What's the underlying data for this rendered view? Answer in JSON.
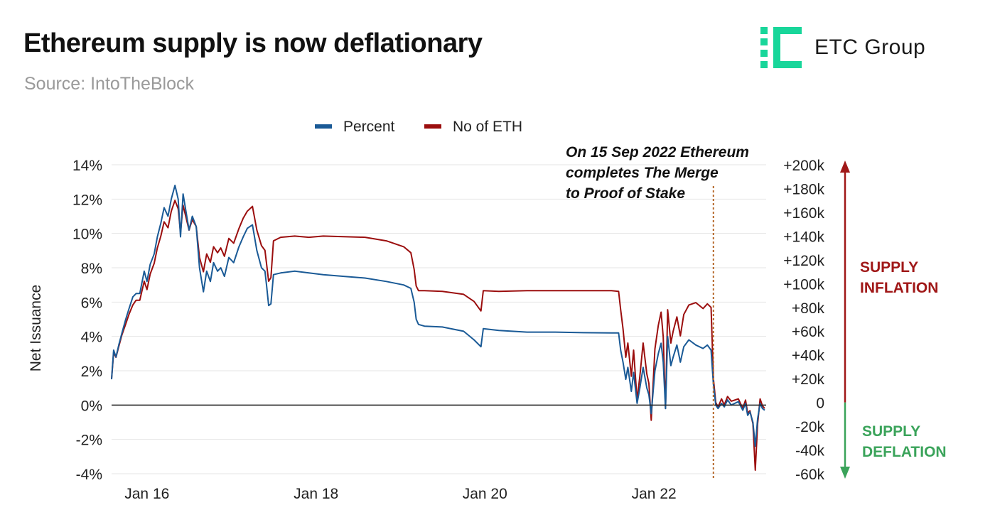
{
  "header": {
    "title": "Ethereum supply is now deflationary",
    "subtitle": "Source: IntoTheBlock",
    "logo_text": "ETC Group"
  },
  "colors": {
    "percent": "#1a5a96",
    "eth": "#9b0e0e",
    "inflation": "#a01818",
    "deflation": "#3aa35a",
    "logo": "#18d69a",
    "merge_line": "#b5682a"
  },
  "chart_data": {
    "type": "line",
    "title": "Ethereum supply is now deflationary",
    "subtitle": "Source: IntoTheBlock",
    "ylabel": "Net Issuance",
    "xlabel": "",
    "legend": {
      "position": "top",
      "items": [
        "Percent",
        "No of ETH"
      ]
    },
    "x_ticks": [
      {
        "label": "Jan 16",
        "date": "2016-01-01"
      },
      {
        "label": "Jan 18",
        "date": "2018-01-01"
      },
      {
        "label": "Jan 20",
        "date": "2020-01-01"
      },
      {
        "label": "Jan 22",
        "date": "2022-01-01"
      }
    ],
    "xlim": [
      "2015-08-01",
      "2023-05-01"
    ],
    "y_left": {
      "ticks": [
        "14%",
        "12%",
        "10%",
        "8%",
        "6%",
        "4%",
        "2%",
        "0%",
        "-2%",
        "-4%"
      ],
      "values": [
        14,
        12,
        10,
        8,
        6,
        4,
        2,
        0,
        -2,
        -4
      ],
      "ylim": [
        -4,
        14
      ]
    },
    "y_right": {
      "ticks": [
        "+200k",
        "+180k",
        "+160k",
        "+140k",
        "+120k",
        "+100k",
        "+80k",
        "+60k",
        "+40k",
        "+20k",
        "0",
        "-20k",
        "-40k",
        "-60k"
      ],
      "values": [
        200000,
        180000,
        160000,
        140000,
        120000,
        100000,
        80000,
        60000,
        40000,
        20000,
        0,
        -20000,
        -40000,
        -60000
      ],
      "ylim": [
        -60000,
        200000
      ]
    },
    "grid": true,
    "annotation": {
      "date": "2022-09-15",
      "lines": [
        "On 15 Sep 2022 Ethereum",
        "completes The Merge",
        "to Proof of Stake"
      ]
    },
    "side_labels": {
      "inflation": [
        "SUPPLY",
        "INFLATION"
      ],
      "deflation": [
        "SUPPLY",
        "DEFLATION"
      ]
    },
    "series": [
      {
        "name": "Percent",
        "axis": "left",
        "unit": "%",
        "points": [
          [
            "2015-08-01",
            1.5
          ],
          [
            "2015-08-10",
            3.2
          ],
          [
            "2015-08-20",
            2.8
          ],
          [
            "2015-09-01",
            3.5
          ],
          [
            "2015-09-15",
            4.2
          ],
          [
            "2015-10-01",
            5.0
          ],
          [
            "2015-10-15",
            5.6
          ],
          [
            "2015-11-01",
            6.3
          ],
          [
            "2015-11-15",
            6.5
          ],
          [
            "2015-12-01",
            6.5
          ],
          [
            "2015-12-20",
            7.8
          ],
          [
            "2016-01-01",
            7.2
          ],
          [
            "2016-01-15",
            8.2
          ],
          [
            "2016-02-01",
            8.8
          ],
          [
            "2016-02-15",
            9.8
          ],
          [
            "2016-03-01",
            10.6
          ],
          [
            "2016-03-15",
            11.5
          ],
          [
            "2016-04-01",
            11.0
          ],
          [
            "2016-04-15",
            12.0
          ],
          [
            "2016-05-01",
            12.8
          ],
          [
            "2016-05-15",
            12.0
          ],
          [
            "2016-05-25",
            9.8
          ],
          [
            "2016-06-05",
            12.3
          ],
          [
            "2016-06-15",
            11.5
          ],
          [
            "2016-07-01",
            10.2
          ],
          [
            "2016-07-15",
            11.0
          ],
          [
            "2016-08-01",
            10.4
          ],
          [
            "2016-08-15",
            8.0
          ],
          [
            "2016-09-01",
            6.6
          ],
          [
            "2016-09-15",
            7.8
          ],
          [
            "2016-10-01",
            7.2
          ],
          [
            "2016-10-15",
            8.3
          ],
          [
            "2016-11-01",
            7.8
          ],
          [
            "2016-11-15",
            8.0
          ],
          [
            "2016-12-01",
            7.5
          ],
          [
            "2016-12-20",
            8.6
          ],
          [
            "2017-01-10",
            8.3
          ],
          [
            "2017-02-01",
            9.2
          ],
          [
            "2017-02-20",
            9.8
          ],
          [
            "2017-03-10",
            10.3
          ],
          [
            "2017-04-01",
            10.5
          ],
          [
            "2017-04-20",
            9.0
          ],
          [
            "2017-05-10",
            8.0
          ],
          [
            "2017-05-25",
            7.8
          ],
          [
            "2017-06-01",
            7.0
          ],
          [
            "2017-06-10",
            5.8
          ],
          [
            "2017-06-20",
            5.9
          ],
          [
            "2017-07-01",
            7.6
          ],
          [
            "2017-08-01",
            7.7
          ],
          [
            "2017-10-01",
            7.8
          ],
          [
            "2017-12-01",
            7.7
          ],
          [
            "2018-02-01",
            7.6
          ],
          [
            "2018-05-01",
            7.5
          ],
          [
            "2018-08-01",
            7.4
          ],
          [
            "2018-11-01",
            7.2
          ],
          [
            "2019-01-15",
            7.0
          ],
          [
            "2019-02-15",
            6.8
          ],
          [
            "2019-03-01",
            6.0
          ],
          [
            "2019-03-10",
            5.0
          ],
          [
            "2019-03-20",
            4.7
          ],
          [
            "2019-04-15",
            4.6
          ],
          [
            "2019-07-01",
            4.55
          ],
          [
            "2019-10-01",
            4.3
          ],
          [
            "2019-11-15",
            3.8
          ],
          [
            "2019-12-15",
            3.4
          ],
          [
            "2019-12-25",
            4.45
          ],
          [
            "2020-03-01",
            4.35
          ],
          [
            "2020-07-01",
            4.25
          ],
          [
            "2020-11-01",
            4.25
          ],
          [
            "2021-03-01",
            4.22
          ],
          [
            "2021-07-01",
            4.2
          ],
          [
            "2021-08-01",
            4.2
          ],
          [
            "2021-08-10",
            3.2
          ],
          [
            "2021-08-20",
            2.5
          ],
          [
            "2021-09-01",
            1.5
          ],
          [
            "2021-09-10",
            2.2
          ],
          [
            "2021-09-25",
            0.8
          ],
          [
            "2021-10-05",
            1.9
          ],
          [
            "2021-10-20",
            0.1
          ],
          [
            "2021-11-01",
            1.0
          ],
          [
            "2021-11-15",
            2.2
          ],
          [
            "2021-12-01",
            1.0
          ],
          [
            "2021-12-10",
            0.6
          ],
          [
            "2021-12-20",
            -0.5
          ],
          [
            "2022-01-05",
            2.0
          ],
          [
            "2022-01-20",
            3.0
          ],
          [
            "2022-02-01",
            3.6
          ],
          [
            "2022-02-10",
            2.5
          ],
          [
            "2022-02-20",
            -0.2
          ],
          [
            "2022-03-01",
            4.0
          ],
          [
            "2022-03-15",
            2.3
          ],
          [
            "2022-03-25",
            2.8
          ],
          [
            "2022-04-10",
            3.5
          ],
          [
            "2022-04-25",
            2.5
          ],
          [
            "2022-05-10",
            3.4
          ],
          [
            "2022-06-01",
            3.8
          ],
          [
            "2022-07-01",
            3.5
          ],
          [
            "2022-08-01",
            3.3
          ],
          [
            "2022-08-20",
            3.5
          ],
          [
            "2022-09-05",
            3.2
          ],
          [
            "2022-09-15",
            1.2
          ],
          [
            "2022-09-25",
            0.0
          ],
          [
            "2022-10-05",
            -0.2
          ],
          [
            "2022-10-20",
            0.1
          ],
          [
            "2022-11-01",
            -0.1
          ],
          [
            "2022-11-15",
            0.3
          ],
          [
            "2022-12-01",
            0.0
          ],
          [
            "2023-01-01",
            0.2
          ],
          [
            "2023-01-20",
            -0.3
          ],
          [
            "2023-02-01",
            0.1
          ],
          [
            "2023-02-10",
            -0.6
          ],
          [
            "2023-02-20",
            -0.4
          ],
          [
            "2023-03-05",
            -1.0
          ],
          [
            "2023-03-15",
            -2.4
          ],
          [
            "2023-03-25",
            -0.8
          ],
          [
            "2023-04-05",
            0.1
          ],
          [
            "2023-04-15",
            -0.2
          ],
          [
            "2023-04-25",
            -0.3
          ]
        ]
      },
      {
        "name": "No of ETH",
        "axis": "right",
        "unit": "ETH",
        "points": [
          [
            "2015-08-01",
            20000
          ],
          [
            "2015-08-10",
            42000
          ],
          [
            "2015-08-20",
            38000
          ],
          [
            "2015-09-01",
            47000
          ],
          [
            "2015-09-15",
            57000
          ],
          [
            "2015-10-01",
            66000
          ],
          [
            "2015-10-15",
            74000
          ],
          [
            "2015-11-01",
            82000
          ],
          [
            "2015-11-15",
            86000
          ],
          [
            "2015-12-01",
            86000
          ],
          [
            "2015-12-20",
            102000
          ],
          [
            "2016-01-01",
            95000
          ],
          [
            "2016-01-15",
            108000
          ],
          [
            "2016-02-01",
            117000
          ],
          [
            "2016-02-15",
            130000
          ],
          [
            "2016-03-01",
            140000
          ],
          [
            "2016-03-15",
            152000
          ],
          [
            "2016-04-01",
            147000
          ],
          [
            "2016-04-15",
            161000
          ],
          [
            "2016-05-01",
            170000
          ],
          [
            "2016-05-15",
            163000
          ],
          [
            "2016-05-25",
            143000
          ],
          [
            "2016-06-05",
            166000
          ],
          [
            "2016-06-15",
            158000
          ],
          [
            "2016-07-01",
            145000
          ],
          [
            "2016-07-15",
            154000
          ],
          [
            "2016-08-01",
            148000
          ],
          [
            "2016-08-15",
            122000
          ],
          [
            "2016-09-01",
            110000
          ],
          [
            "2016-09-15",
            125000
          ],
          [
            "2016-10-01",
            118000
          ],
          [
            "2016-10-15",
            131000
          ],
          [
            "2016-11-01",
            126000
          ],
          [
            "2016-11-15",
            130000
          ],
          [
            "2016-12-01",
            123000
          ],
          [
            "2016-12-20",
            138000
          ],
          [
            "2017-01-10",
            134000
          ],
          [
            "2017-02-01",
            146000
          ],
          [
            "2017-02-20",
            155000
          ],
          [
            "2017-03-10",
            161000
          ],
          [
            "2017-04-01",
            165000
          ],
          [
            "2017-04-20",
            145000
          ],
          [
            "2017-05-10",
            132000
          ],
          [
            "2017-05-25",
            128000
          ],
          [
            "2017-06-01",
            117000
          ],
          [
            "2017-06-10",
            102000
          ],
          [
            "2017-06-20",
            105000
          ],
          [
            "2017-07-01",
            136000
          ],
          [
            "2017-08-01",
            139000
          ],
          [
            "2017-10-01",
            140000
          ],
          [
            "2017-12-01",
            139000
          ],
          [
            "2018-02-01",
            140000
          ],
          [
            "2018-05-01",
            139500
          ],
          [
            "2018-08-01",
            139000
          ],
          [
            "2018-11-01",
            136000
          ],
          [
            "2019-01-15",
            131000
          ],
          [
            "2019-02-15",
            126000
          ],
          [
            "2019-03-01",
            112000
          ],
          [
            "2019-03-10",
            98000
          ],
          [
            "2019-03-20",
            94000
          ],
          [
            "2019-04-15",
            94000
          ],
          [
            "2019-07-01",
            93500
          ],
          [
            "2019-10-01",
            91000
          ],
          [
            "2019-11-15",
            85000
          ],
          [
            "2019-12-15",
            77000
          ],
          [
            "2019-12-25",
            94000
          ],
          [
            "2020-03-01",
            93500
          ],
          [
            "2020-07-01",
            94000
          ],
          [
            "2020-11-01",
            94000
          ],
          [
            "2021-03-01",
            94000
          ],
          [
            "2021-07-01",
            94000
          ],
          [
            "2021-08-01",
            93500
          ],
          [
            "2021-08-10",
            78000
          ],
          [
            "2021-08-20",
            62000
          ],
          [
            "2021-09-01",
            38000
          ],
          [
            "2021-09-10",
            50000
          ],
          [
            "2021-09-25",
            22000
          ],
          [
            "2021-10-05",
            44000
          ],
          [
            "2021-10-20",
            2000
          ],
          [
            "2021-11-01",
            22000
          ],
          [
            "2021-11-15",
            50000
          ],
          [
            "2021-12-01",
            24000
          ],
          [
            "2021-12-10",
            16000
          ],
          [
            "2021-12-20",
            -15000
          ],
          [
            "2022-01-05",
            45000
          ],
          [
            "2022-01-20",
            65000
          ],
          [
            "2022-02-01",
            76000
          ],
          [
            "2022-02-10",
            55000
          ],
          [
            "2022-02-20",
            -5000
          ],
          [
            "2022-03-01",
            78000
          ],
          [
            "2022-03-15",
            50000
          ],
          [
            "2022-03-25",
            60000
          ],
          [
            "2022-04-10",
            72000
          ],
          [
            "2022-04-25",
            56000
          ],
          [
            "2022-05-10",
            74000
          ],
          [
            "2022-06-01",
            82000
          ],
          [
            "2022-07-01",
            84000
          ],
          [
            "2022-08-01",
            79000
          ],
          [
            "2022-08-20",
            83000
          ],
          [
            "2022-09-05",
            80000
          ],
          [
            "2022-09-15",
            20000
          ],
          [
            "2022-09-25",
            0
          ],
          [
            "2022-10-05",
            -4000
          ],
          [
            "2022-10-20",
            3000
          ],
          [
            "2022-11-01",
            -2000
          ],
          [
            "2022-11-15",
            5000
          ],
          [
            "2022-12-01",
            1000
          ],
          [
            "2023-01-01",
            3000
          ],
          [
            "2023-01-20",
            -5000
          ],
          [
            "2023-02-01",
            2000
          ],
          [
            "2023-02-10",
            -9000
          ],
          [
            "2023-02-20",
            -7000
          ],
          [
            "2023-03-05",
            -18000
          ],
          [
            "2023-03-15",
            -57000
          ],
          [
            "2023-03-25",
            -18000
          ],
          [
            "2023-04-05",
            3000
          ],
          [
            "2023-04-15",
            -3000
          ],
          [
            "2023-04-25",
            -5000
          ]
        ]
      }
    ]
  }
}
